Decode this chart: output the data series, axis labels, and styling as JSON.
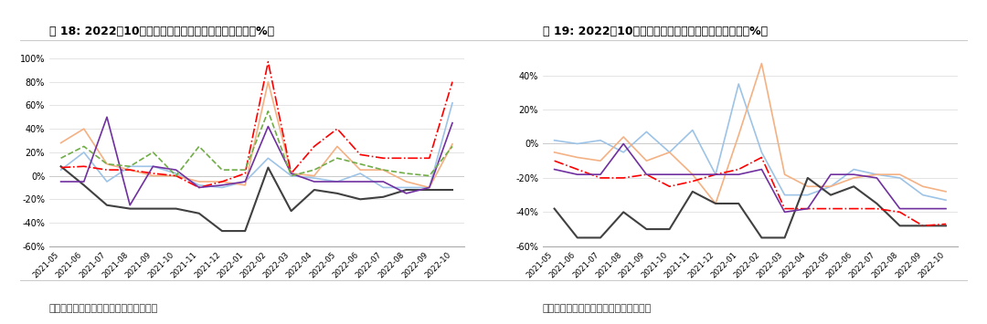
{
  "title1": "图 18: 2022年10月老板油烟机线上销额同比回升亮眼（%）",
  "title2": "图 19: 2022年10月油烟机线下销额继续呈现下滑态势（%）",
  "source": "数据来源：奥维云网、国泰君安证券研究",
  "x_labels": [
    "2021-05",
    "2021-06",
    "2021-07",
    "2021-08",
    "2021-09",
    "2021-10",
    "2021-11",
    "2021-12",
    "2022-01",
    "2022-02",
    "2022-03",
    "2022-04",
    "2022-05",
    "2022-06",
    "2022-07",
    "2022-08",
    "2022-09",
    "2022-10"
  ],
  "chart1": {
    "laoba": [
      5,
      20,
      -5,
      8,
      8,
      2,
      -8,
      -10,
      -5,
      15,
      0,
      -2,
      -5,
      2,
      -10,
      -10,
      -10,
      62
    ],
    "fangtai": [
      28,
      40,
      10,
      5,
      0,
      0,
      -5,
      -5,
      -8,
      80,
      2,
      0,
      25,
      5,
      5,
      -5,
      -10,
      27
    ],
    "meidi": [
      8,
      -8,
      -25,
      -28,
      -28,
      -28,
      -32,
      -47,
      -47,
      7,
      -30,
      -12,
      -15,
      -20,
      -18,
      -12,
      -12,
      -12
    ],
    "huadi": [
      7,
      8,
      5,
      5,
      2,
      0,
      -10,
      -5,
      2,
      97,
      2,
      25,
      40,
      18,
      15,
      15,
      15,
      80
    ],
    "haier": [
      -5,
      -5,
      50,
      -25,
      8,
      5,
      -10,
      -8,
      -5,
      42,
      2,
      -5,
      -5,
      -5,
      -5,
      -15,
      -10,
      45
    ],
    "suyoer": [
      15,
      25,
      10,
      8,
      20,
      0,
      25,
      5,
      5,
      55,
      0,
      5,
      15,
      10,
      5,
      2,
      0,
      25
    ]
  },
  "chart2": {
    "laoba": [
      2,
      0,
      2,
      -5,
      7,
      -5,
      8,
      -18,
      35,
      -5,
      -30,
      -30,
      -25,
      -15,
      -18,
      -20,
      -30,
      -33
    ],
    "fangtai": [
      -5,
      -8,
      -10,
      4,
      -10,
      -5,
      -18,
      -35,
      5,
      47,
      -18,
      -25,
      -25,
      -20,
      -18,
      -18,
      -25,
      -28
    ],
    "meidi": [
      -38,
      -55,
      -55,
      -40,
      -50,
      -50,
      -28,
      -35,
      -35,
      -55,
      -55,
      -20,
      -30,
      -25,
      -35,
      -48,
      -48,
      -48
    ],
    "huadi": [
      -10,
      -15,
      -20,
      -20,
      -18,
      -25,
      -22,
      -18,
      -15,
      -8,
      -38,
      -38,
      -38,
      -38,
      -38,
      -40,
      -48,
      -47
    ],
    "haier": [
      -15,
      -18,
      -18,
      0,
      -18,
      -18,
      -18,
      -18,
      -18,
      -15,
      -40,
      -38,
      -18,
      -18,
      -20,
      -38,
      -38,
      -38
    ]
  },
  "colors": {
    "laoba": "#9dc3e6",
    "fangtai": "#f4b183",
    "meidi": "#404040",
    "huadi": "#ff0000",
    "haier": "#7030a0",
    "suyoer": "#70ad47"
  },
  "ylim1": [
    -60,
    100
  ],
  "ylim2": [
    -60,
    50
  ],
  "yticks1": [
    -60,
    -40,
    -20,
    0,
    20,
    40,
    60,
    80,
    100
  ],
  "yticks2": [
    -60,
    -40,
    -20,
    0,
    20,
    40
  ],
  "bg_color": "#ffffff",
  "grid_color": "#d9d9d9"
}
